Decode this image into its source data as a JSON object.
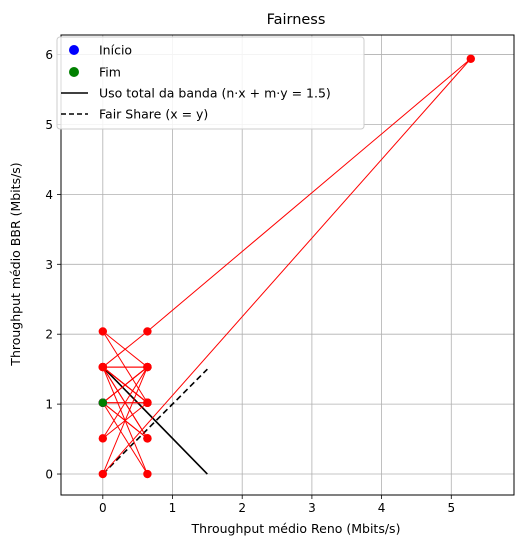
{
  "chart_data": {
    "type": "scatter",
    "title": "Fairness",
    "xlabel": "Throughput médio Reno (Mbits/s)",
    "ylabel": "Throughput médio BBR (Mbits/s)",
    "xlim": [
      -0.6,
      5.9
    ],
    "ylim": [
      -0.3,
      6.28
    ],
    "xticks": [
      0,
      1,
      2,
      3,
      4,
      5
    ],
    "yticks": [
      0,
      1,
      2,
      3,
      4,
      5,
      6
    ],
    "grid": true,
    "legend_position": "top-left",
    "trajectory": {
      "color": "#ff0000",
      "points": [
        [
          0.0,
          1.02
        ],
        [
          0.64,
          1.02
        ],
        [
          0.0,
          1.53
        ],
        [
          0.64,
          1.53
        ],
        [
          0.0,
          1.02
        ],
        [
          0.64,
          0.51
        ],
        [
          0.0,
          1.53
        ],
        [
          0.64,
          1.02
        ],
        [
          0.0,
          0.51
        ],
        [
          0.64,
          1.53
        ],
        [
          0.0,
          2.04
        ],
        [
          0.64,
          1.02
        ],
        [
          0.0,
          1.02
        ],
        [
          0.64,
          0.0
        ],
        [
          0.0,
          1.53
        ],
        [
          0.64,
          0.51
        ],
        [
          0.0,
          1.02
        ],
        [
          0.64,
          1.53
        ],
        [
          0.0,
          0.0
        ],
        [
          5.28,
          5.94
        ],
        [
          0.64,
          2.04
        ],
        [
          0.0,
          1.53
        ],
        [
          0.64,
          1.02
        ],
        [
          0.0,
          1.53
        ],
        [
          0.64,
          1.53
        ],
        [
          0.0,
          1.02
        ]
      ]
    },
    "start_point": {
      "label": "Início",
      "x": 0.0,
      "y": 1.02,
      "color": "#0000ff"
    },
    "end_point": {
      "label": "Fim",
      "x": 0.0,
      "y": 1.02,
      "color": "#008000"
    },
    "lines": [
      {
        "label": "Uso total da banda (n·x + m·y = 1.5)",
        "style": "solid",
        "color": "#000000",
        "x": [
          0.0,
          1.5
        ],
        "y": [
          1.53,
          0.0
        ]
      },
      {
        "label": "Fair Share (x = y)",
        "style": "dashed",
        "color": "#000000",
        "x": [
          0.0,
          1.5
        ],
        "y": [
          0.0,
          1.5
        ]
      }
    ]
  }
}
